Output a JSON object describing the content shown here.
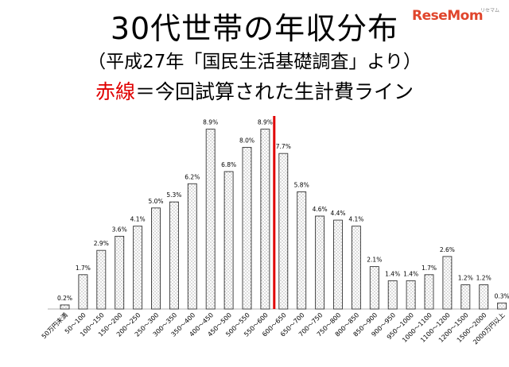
{
  "title": {
    "line1": "30代世帯の年収分布",
    "line2": "（平成27年「国民生活基礎調査」より）",
    "line3_red": "赤線",
    "line3_rest": "＝今回試算された生計費ライン"
  },
  "logo": {
    "text": "ReseMom",
    "sub": "リセマム"
  },
  "colors": {
    "bar_fill": "#ffffff",
    "bar_stroke": "#333333",
    "dots": "#555555",
    "red_line": "#e00000"
  },
  "chart_data": {
    "type": "bar",
    "categories": [
      "50万円未満",
      "50～100",
      "100～150",
      "150～200",
      "200～250",
      "250～300",
      "300～350",
      "350～400",
      "400～450",
      "450～500",
      "500～550",
      "550～600",
      "600～650",
      "650～700",
      "700～750",
      "750～800",
      "800～850",
      "850～900",
      "900～950",
      "950～1000",
      "1000～1100",
      "1100～1200",
      "1200～1500",
      "1500～2000",
      "2000万円以上"
    ],
    "values": [
      0.2,
      1.7,
      2.9,
      3.6,
      4.1,
      5.0,
      5.3,
      6.2,
      8.9,
      6.8,
      8.0,
      8.9,
      7.7,
      5.8,
      4.6,
      4.4,
      4.1,
      2.1,
      1.4,
      1.4,
      1.7,
      2.6,
      1.2,
      1.2,
      0.3
    ],
    "labels": [
      "0.2%",
      "1.7%",
      "2.9%",
      "3.6%",
      "4.1%",
      "5.0%",
      "5.3%",
      "6.2%",
      "8.9%",
      "6.8%",
      "8.0%",
      "8.9%",
      "7.7%",
      "5.8%",
      "4.6%",
      "4.4%",
      "4.1%",
      "2.1%",
      "1.4%",
      "1.4%",
      "1.7%",
      "2.6%",
      "1.2%",
      "1.2%",
      "0.3%"
    ],
    "ylim": [
      0,
      9.2
    ],
    "grid": false,
    "legend": "none",
    "reference_line": {
      "between": [
        "550～600",
        "600～650"
      ]
    }
  }
}
